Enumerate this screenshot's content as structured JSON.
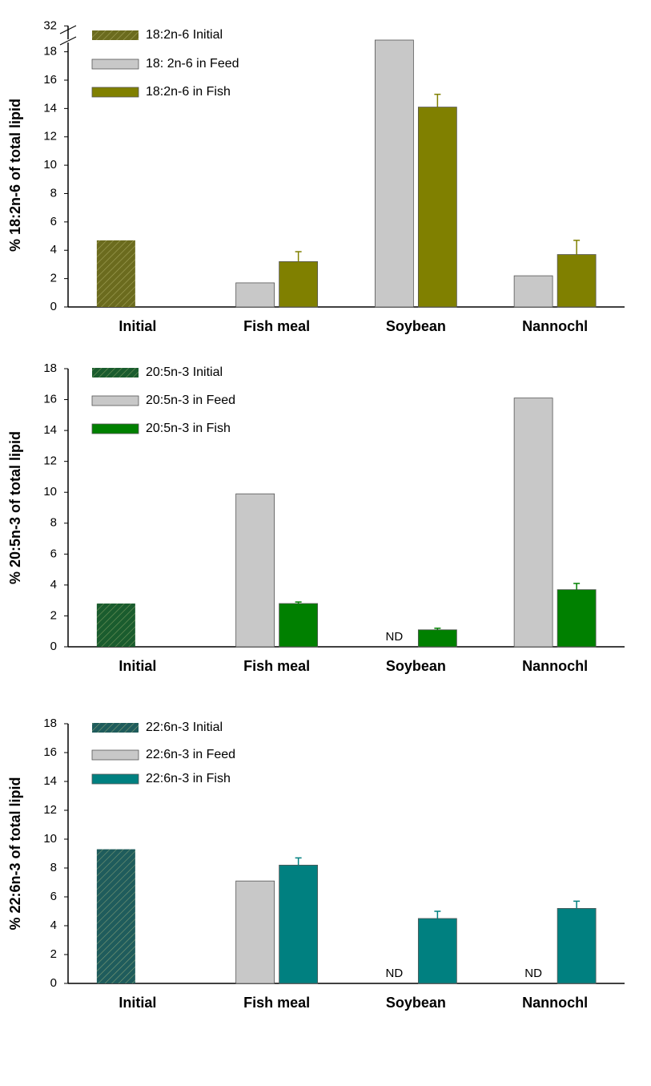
{
  "chart_data": [
    {
      "type": "bar",
      "ylabel": "% 18:2n-6 of total lipid",
      "categories": [
        "Initial",
        "Fish meal",
        "Soybean",
        "Nannochl"
      ],
      "ylim": [
        0,
        32
      ],
      "ybreak": [
        18.6,
        31
      ],
      "yticks": [
        0,
        2,
        4,
        6,
        8,
        10,
        12,
        14,
        16,
        18,
        32
      ],
      "series": [
        {
          "name": "18:2n-6   Initial",
          "color": "#6b6b1e",
          "hatch": true,
          "values": [
            4.7,
            null,
            null,
            null
          ],
          "errors": [
            null,
            null,
            null,
            null
          ]
        },
        {
          "name": "18: 2n-6 in Feed",
          "color": "#c8c8c8",
          "values": [
            null,
            1.7,
            31,
            2.2
          ],
          "errors": [
            null,
            null,
            null,
            null
          ]
        },
        {
          "name": "18:2n-6 in Fish",
          "color": "#808000",
          "values": [
            null,
            3.2,
            14.1,
            3.7
          ],
          "errors": [
            null,
            0.7,
            0.9,
            1.0
          ]
        }
      ],
      "annotations": []
    },
    {
      "type": "bar",
      "ylabel": "% 20:5n-3 of total lipid",
      "categories": [
        "Initial",
        "Fish meal",
        "Soybean",
        "Nannochl"
      ],
      "ylim": [
        0,
        18
      ],
      "yticks": [
        0,
        2,
        4,
        6,
        8,
        10,
        12,
        14,
        16,
        18
      ],
      "series": [
        {
          "name": "20:5n-3 Initial",
          "color": "#1a5c2e",
          "hatch": true,
          "values": [
            2.8,
            null,
            null,
            null
          ],
          "errors": [
            null,
            null,
            null,
            null
          ]
        },
        {
          "name": "20:5n-3 in Feed",
          "color": "#c8c8c8",
          "values": [
            null,
            9.9,
            null,
            16.1
          ],
          "errors": [
            null,
            null,
            null,
            null
          ]
        },
        {
          "name": "20:5n-3 in Fish",
          "color": "#008000",
          "values": [
            null,
            2.8,
            1.1,
            3.7
          ],
          "errors": [
            null,
            0.1,
            0.1,
            0.4
          ]
        }
      ],
      "annotations": [
        {
          "category": "Soybean",
          "text": "ND"
        }
      ]
    },
    {
      "type": "bar",
      "ylabel": "% 22:6n-3 of total lipid",
      "categories": [
        "Initial",
        "Fish meal",
        "Soybean",
        "Nannochl"
      ],
      "ylim": [
        0,
        18
      ],
      "yticks": [
        0,
        2,
        4,
        6,
        8,
        10,
        12,
        14,
        16,
        18
      ],
      "series": [
        {
          "name": "22:6n-3  Initial",
          "color": "#1f5c5c",
          "hatch": true,
          "values": [
            9.3,
            null,
            null,
            null
          ],
          "errors": [
            null,
            null,
            null,
            null
          ]
        },
        {
          "name": "22:6n-3 in Feed",
          "color": "#c8c8c8",
          "values": [
            null,
            7.1,
            null,
            null
          ],
          "errors": [
            null,
            null,
            null,
            null
          ]
        },
        {
          "name": "22:6n-3 in Fish",
          "color": "#008080",
          "values": [
            null,
            8.2,
            4.5,
            5.2
          ],
          "errors": [
            null,
            0.5,
            0.5,
            0.5
          ]
        }
      ],
      "annotations": [
        {
          "category": "Soybean",
          "text": "ND"
        },
        {
          "category": "Nannochl",
          "text": "ND"
        }
      ]
    }
  ]
}
